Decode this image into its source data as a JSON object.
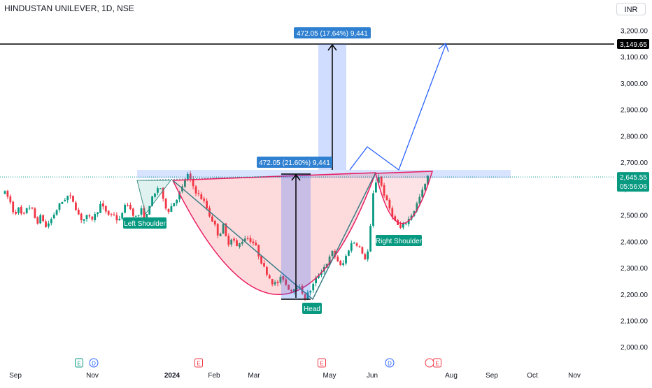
{
  "header": {
    "symbol_title": "HINDUSTAN UNILEVER, 1D, NSE",
    "currency": "INR"
  },
  "chart_data": {
    "type": "candlestick",
    "title": "HINDUSTAN UNILEVER, 1D, NSE",
    "currency": "INR",
    "ylim": [
      1965,
      3255
    ],
    "y_ticks": [
      "2,000.00",
      "2,100.00",
      "2,200.00",
      "2,300.00",
      "2,400.00",
      "2,500.00",
      "2,600.00",
      "2,700.00",
      "2,800.00",
      "2,900.00",
      "3,000.00",
      "3,100.00",
      "3,200.00"
    ],
    "x_ticks": [
      "Sep",
      "Nov",
      "2024",
      "Feb",
      "Mar",
      "May",
      "Jun",
      "Aug",
      "Sep",
      "Oct",
      "Nov"
    ],
    "x_ticks_bold": [
      "2024"
    ],
    "last_price": "2,645.55",
    "countdown": "05:56:06",
    "target_price": "3,149.65",
    "colors": {
      "up": "#089981",
      "down": "#f23645",
      "axis_text": "#131722",
      "blue": "#2962ff",
      "label_blue": "#2f80d1",
      "label_green": "#089981"
    },
    "price_path": [
      [
        0,
        2585
      ],
      [
        5,
        2560
      ],
      [
        10,
        2505
      ],
      [
        15,
        2525
      ],
      [
        20,
        2490
      ],
      [
        25,
        2540
      ],
      [
        30,
        2520
      ],
      [
        35,
        2470
      ],
      [
        40,
        2500
      ],
      [
        45,
        2455
      ],
      [
        50,
        2480
      ],
      [
        55,
        2510
      ],
      [
        60,
        2540
      ],
      [
        65,
        2560
      ],
      [
        70,
        2575
      ],
      [
        75,
        2555
      ],
      [
        80,
        2510
      ],
      [
        85,
        2480
      ],
      [
        90,
        2495
      ],
      [
        95,
        2485
      ],
      [
        100,
        2505
      ],
      [
        105,
        2540
      ],
      [
        110,
        2520
      ],
      [
        115,
        2500
      ],
      [
        120,
        2505
      ],
      [
        125,
        2470
      ],
      [
        130,
        2525
      ],
      [
        135,
        2545
      ],
      [
        140,
        2510
      ],
      [
        145,
        2490
      ],
      [
        150,
        2520
      ],
      [
        155,
        2485
      ],
      [
        160,
        2555
      ],
      [
        165,
        2580
      ],
      [
        170,
        2620
      ],
      [
        175,
        2540
      ],
      [
        180,
        2520
      ],
      [
        185,
        2545
      ],
      [
        190,
        2570
      ],
      [
        195,
        2605
      ],
      [
        200,
        2660
      ],
      [
        205,
        2625
      ],
      [
        210,
        2590
      ],
      [
        215,
        2570
      ],
      [
        220,
        2545
      ],
      [
        225,
        2500
      ],
      [
        230,
        2470
      ],
      [
        235,
        2420
      ],
      [
        240,
        2460
      ],
      [
        245,
        2390
      ],
      [
        250,
        2420
      ],
      [
        255,
        2380
      ],
      [
        260,
        2400
      ],
      [
        265,
        2420
      ],
      [
        270,
        2405
      ],
      [
        275,
        2390
      ],
      [
        280,
        2340
      ],
      [
        285,
        2300
      ],
      [
        290,
        2270
      ],
      [
        295,
        2240
      ],
      [
        300,
        2245
      ],
      [
        305,
        2270
      ],
      [
        310,
        2230
      ],
      [
        315,
        2215
      ],
      [
        320,
        2235
      ],
      [
        325,
        2220
      ],
      [
        330,
        2190
      ],
      [
        335,
        2210
      ],
      [
        340,
        2245
      ],
      [
        345,
        2275
      ],
      [
        350,
        2300
      ],
      [
        355,
        2325
      ],
      [
        360,
        2360
      ],
      [
        365,
        2335
      ],
      [
        370,
        2300
      ],
      [
        375,
        2345
      ],
      [
        380,
        2390
      ],
      [
        385,
        2400
      ],
      [
        390,
        2380
      ],
      [
        395,
        2330
      ],
      [
        400,
        2370
      ],
      [
        405,
        2580
      ],
      [
        410,
        2660
      ],
      [
        415,
        2600
      ],
      [
        420,
        2550
      ],
      [
        425,
        2510
      ],
      [
        430,
        2470
      ],
      [
        435,
        2450
      ],
      [
        440,
        2470
      ],
      [
        445,
        2490
      ],
      [
        450,
        2520
      ],
      [
        455,
        2560
      ],
      [
        460,
        2600
      ],
      [
        465,
        2645
      ]
    ],
    "annotations": {
      "pattern_labels": [
        "Left Shoulder",
        "Head",
        "Right Shoulder"
      ],
      "measure_labels": [
        "472.05 (21.60%) 9,441",
        "472.05 (17.64%) 9,441"
      ],
      "events": [
        "E",
        "D",
        "E",
        "E",
        "D",
        "E"
      ]
    }
  }
}
